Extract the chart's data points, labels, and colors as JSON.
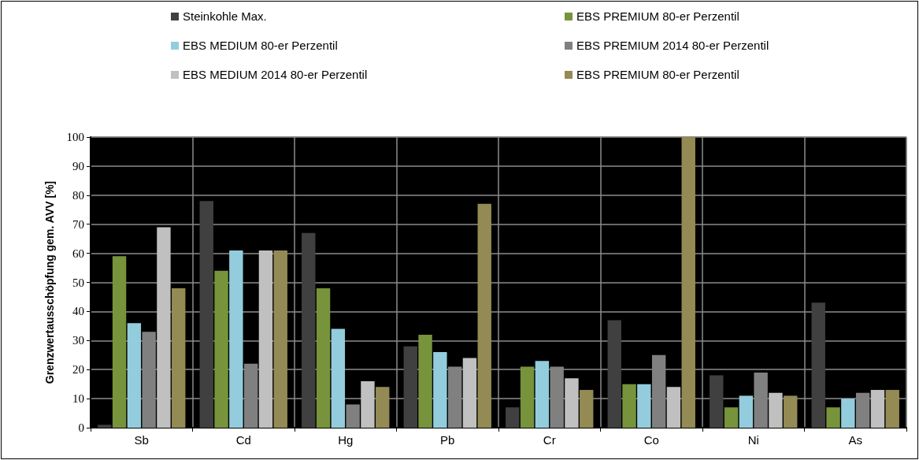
{
  "chart_data": {
    "type": "bar",
    "ylabel": "Grenzwertausschöpfung gem. AVV [%]",
    "categories": [
      "Sb",
      "Cd",
      "Hg",
      "Pb",
      "Cr",
      "Co",
      "Ni",
      "As"
    ],
    "series": [
      {
        "name": "Steinkohle Max.",
        "color": "#404040",
        "values": [
          1,
          78,
          67,
          28,
          7,
          37,
          18,
          43
        ]
      },
      {
        "name": "EBS PREMIUM 80-er Perzentil",
        "color": "#77933c",
        "values": [
          59,
          54,
          48,
          32,
          21,
          15,
          7,
          7
        ]
      },
      {
        "name": "EBS MEDIUM 80-er Perzentil",
        "color": "#93cddd",
        "values": [
          36,
          61,
          34,
          26,
          23,
          15,
          11,
          10
        ]
      },
      {
        "name": "EBS PREMIUM 2014 80-er Perzentil",
        "color": "#808080",
        "values": [
          33,
          22,
          8,
          21,
          21,
          25,
          19,
          12
        ]
      },
      {
        "name": "EBS MEDIUM 2014 80-er Perzentil",
        "color": "#c0c0c0",
        "values": [
          69,
          61,
          16,
          24,
          17,
          14,
          12,
          13
        ]
      },
      {
        "name": "EBS PREMIUM 80-er Perzentil",
        "color": "#948a54",
        "values": [
          48,
          61,
          14,
          77,
          13,
          100,
          11,
          13
        ]
      }
    ],
    "ylim": [
      0,
      100
    ],
    "yticks": [
      0,
      10,
      20,
      30,
      40,
      50,
      60,
      70,
      80,
      90,
      100
    ],
    "grid": true,
    "legend": "top"
  }
}
